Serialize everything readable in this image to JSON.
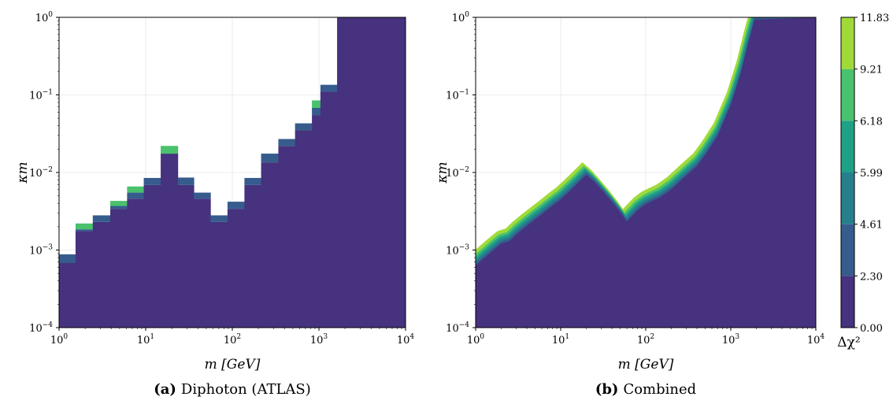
{
  "colors": {
    "levels": [
      "#46327e",
      "#365c8d",
      "#277f8e",
      "#1fa187",
      "#4ac16d",
      "#a0da39"
    ],
    "grid": "#e6e6e6"
  },
  "chart_data": [
    {
      "type": "heatmap",
      "panel_label": "(a)",
      "caption": "Diphoton (ATLAS)",
      "xlabel": "m [GeV]",
      "ylabel": "κm",
      "xscale": "log",
      "yscale": "log",
      "xlim": [
        1,
        10000
      ],
      "ylim": [
        0.0001,
        1
      ],
      "x_ticks": [
        "10^0",
        "10^1",
        "10^2",
        "10^3",
        "10^4"
      ],
      "y_ticks": [
        "10^-4",
        "10^-3",
        "10^-2",
        "10^-1",
        "10^0"
      ],
      "grid": true,
      "bins": [
        {
          "x0": 1.0,
          "x1": 1.55,
          "y1": 0.00068,
          "y2": 0.00088,
          "y3": 0.00088,
          "y4": 0.00088,
          "y5": 0.00088
        },
        {
          "x0": 1.55,
          "x1": 2.45,
          "y1": 0.00175,
          "y2": 0.00185,
          "y3": 0.00185,
          "y4": 0.00185,
          "y5": 0.0022
        },
        {
          "x0": 2.45,
          "x1": 3.9,
          "y1": 0.0023,
          "y2": 0.0028,
          "y3": 0.0028,
          "y4": 0.0028,
          "y5": 0.0028
        },
        {
          "x0": 3.9,
          "x1": 6.1,
          "y1": 0.0034,
          "y2": 0.0037,
          "y3": 0.0037,
          "y4": 0.0037,
          "y5": 0.0043
        },
        {
          "x0": 6.1,
          "x1": 9.5,
          "y1": 0.0046,
          "y2": 0.0055,
          "y3": 0.0055,
          "y4": 0.0055,
          "y5": 0.0066
        },
        {
          "x0": 9.5,
          "x1": 14.9,
          "y1": 0.0069,
          "y2": 0.0085,
          "y3": 0.0085,
          "y4": 0.0085,
          "y5": 0.0085
        },
        {
          "x0": 14.9,
          "x1": 23.5,
          "y1": 0.0175,
          "y2": 0.0175,
          "y3": 0.0175,
          "y4": 0.0175,
          "y5": 0.022
        },
        {
          "x0": 23.5,
          "x1": 36.0,
          "y1": 0.0069,
          "y2": 0.0086,
          "y3": 0.0086,
          "y4": 0.0086,
          "y5": 0.0086
        },
        {
          "x0": 36.0,
          "x1": 56.0,
          "y1": 0.0046,
          "y2": 0.0055,
          "y3": 0.0055,
          "y4": 0.0055,
          "y5": 0.0055
        },
        {
          "x0": 56.0,
          "x1": 88.0,
          "y1": 0.0023,
          "y2": 0.0028,
          "y3": 0.0028,
          "y4": 0.0028,
          "y5": 0.0028
        },
        {
          "x0": 88.0,
          "x1": 138.0,
          "y1": 0.0034,
          "y2": 0.0042,
          "y3": 0.0042,
          "y4": 0.0042,
          "y5": 0.0042
        },
        {
          "x0": 138.0,
          "x1": 215.0,
          "y1": 0.0069,
          "y2": 0.0085,
          "y3": 0.0085,
          "y4": 0.0085,
          "y5": 0.0085
        },
        {
          "x0": 215.0,
          "x1": 340.0,
          "y1": 0.0135,
          "y2": 0.0175,
          "y3": 0.0175,
          "y4": 0.0175,
          "y5": 0.0175
        },
        {
          "x0": 340.0,
          "x1": 530.0,
          "y1": 0.022,
          "y2": 0.027,
          "y3": 0.027,
          "y4": 0.027,
          "y5": 0.027
        },
        {
          "x0": 530.0,
          "x1": 830.0,
          "y1": 0.035,
          "y2": 0.043,
          "y3": 0.043,
          "y4": 0.043,
          "y5": 0.043
        },
        {
          "x0": 830.0,
          "x1": 1040.0,
          "y1": 0.055,
          "y2": 0.068,
          "y3": 0.068,
          "y4": 0.068,
          "y5": 0.085
        },
        {
          "x0": 1040.0,
          "x1": 1620.0,
          "y1": 0.11,
          "y2": 0.135,
          "y3": 0.135,
          "y4": 0.135,
          "y5": 0.135
        },
        {
          "x0": 1620.0,
          "x1": 10000.0,
          "y1": 1.0,
          "y2": 1.0,
          "y3": 1.0,
          "y4": 1.0,
          "y5": 1.0
        }
      ]
    },
    {
      "type": "heatmap",
      "panel_label": "(b)",
      "caption": "Combined",
      "xlabel": "m [GeV]",
      "ylabel": "κm",
      "xscale": "log",
      "yscale": "log",
      "xlim": [
        1,
        10000
      ],
      "ylim": [
        0.0001,
        1
      ],
      "x_ticks": [
        "10^0",
        "10^1",
        "10^2",
        "10^3",
        "10^4"
      ],
      "y_ticks": [
        "10^-4",
        "10^-3",
        "10^-2",
        "10^-1",
        "10^0"
      ],
      "grid": true,
      "boundary": {
        "m": [
          1,
          1.5,
          2,
          2.5,
          3,
          4,
          6,
          8,
          10,
          14,
          20,
          25,
          30,
          40,
          50,
          60,
          70,
          80,
          100,
          150,
          200,
          300,
          400,
          500,
          700,
          1000,
          1300,
          1600,
          1900
        ],
        "kappa_m": [
          0.00068,
          0.001,
          0.0013,
          0.0014,
          0.0017,
          0.0022,
          0.0031,
          0.004,
          0.0048,
          0.0068,
          0.01,
          0.0081,
          0.0065,
          0.0045,
          0.0033,
          0.0025,
          0.003,
          0.0035,
          0.0042,
          0.0052,
          0.0065,
          0.0098,
          0.013,
          0.018,
          0.032,
          0.08,
          0.2,
          0.5,
          1.0
        ]
      }
    },
    {
      "type": "colorbar",
      "label": "Δχ²",
      "levels": [
        "0.00",
        "2.30",
        "4.61",
        "5.99",
        "6.18",
        "9.21",
        "11.83"
      ]
    }
  ]
}
